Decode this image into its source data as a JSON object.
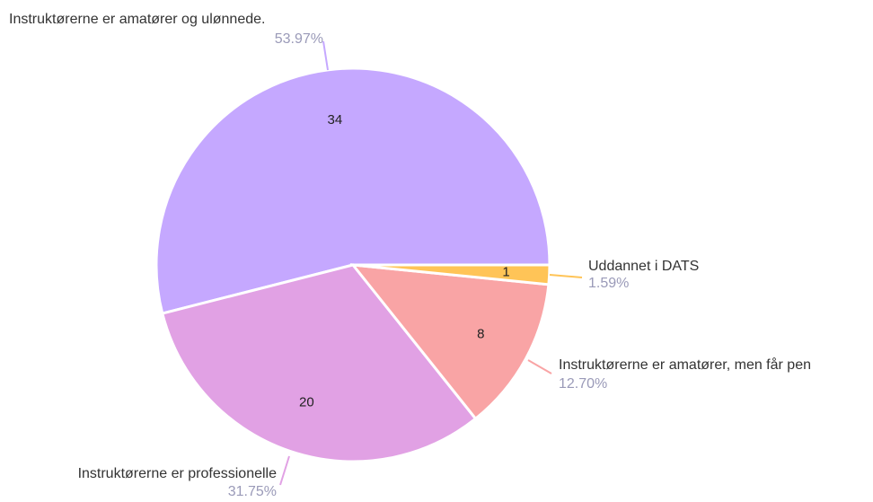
{
  "chart_data": {
    "type": "pie",
    "categories": [
      "Instruktørerne er amatører og ulønnede.",
      "Instruktørerne er professionelle",
      "Instruktørerne er amatører, men får pen",
      "Uddannet i DATS"
    ],
    "values": [
      34,
      20,
      8,
      1
    ],
    "percentages": [
      53.97,
      31.75,
      12.7,
      1.59
    ],
    "percentage_labels": [
      "53.97%",
      "31.75%",
      "12.70%",
      "1.59%"
    ],
    "colors": [
      "#c5a8ff",
      "#e1a1e4",
      "#f9a4a5",
      "#ffc457"
    ]
  }
}
